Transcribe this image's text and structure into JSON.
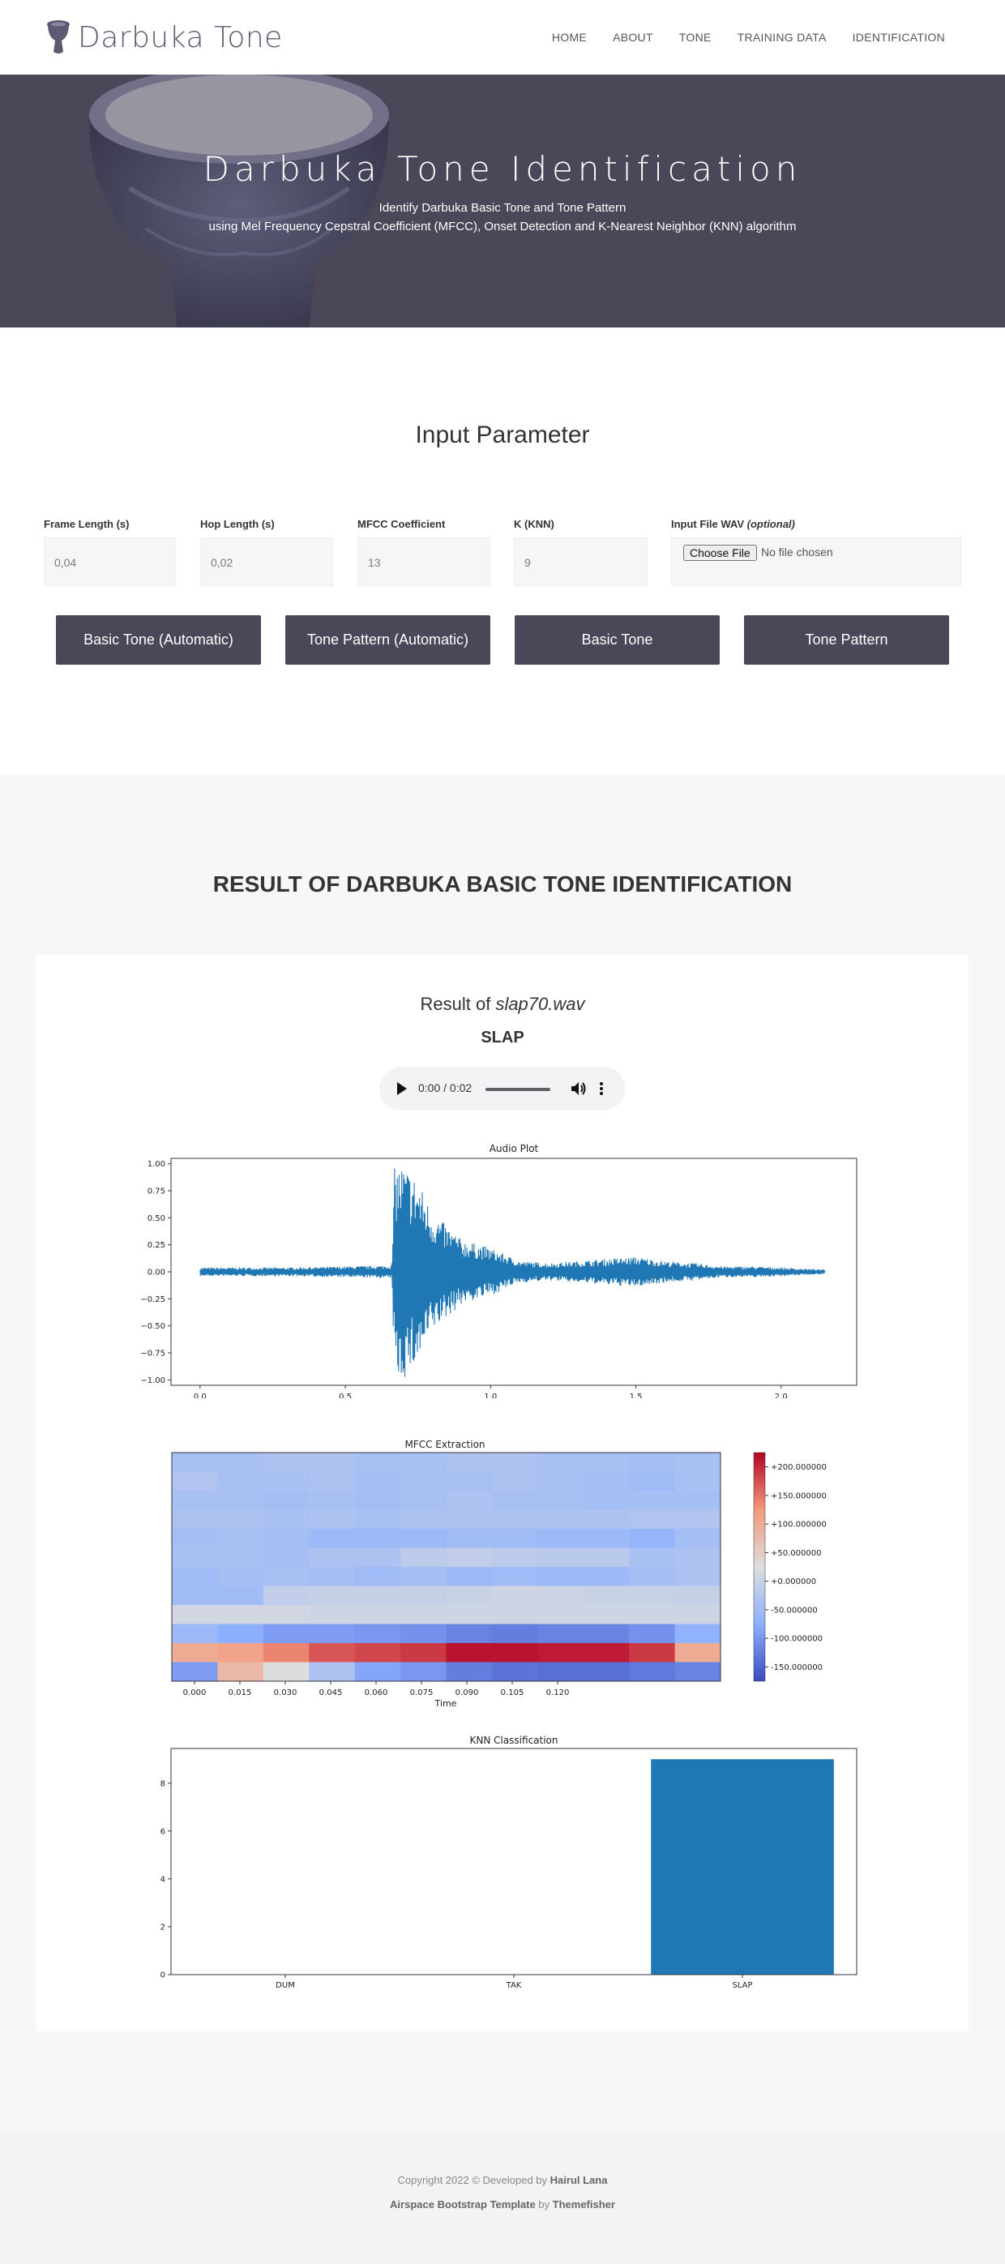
{
  "nav": {
    "brand": "Darbuka Tone",
    "items": [
      "HOME",
      "ABOUT",
      "TONE",
      "TRAINING DATA",
      "IDENTIFICATION"
    ]
  },
  "hero": {
    "title": "Darbuka Tone Identification",
    "subtitle1": "Identify Darbuka Basic Tone and Tone Pattern",
    "subtitle2": "using Mel Frequency Cepstral Coefficient (MFCC), Onset Detection and K-Nearest Neighbor (KNN) algorithm"
  },
  "input": {
    "title": "Input Parameter",
    "fields": [
      {
        "label": "Frame Length (s)",
        "value": "0,04"
      },
      {
        "label": "Hop Length (s)",
        "value": "0,02"
      },
      {
        "label": "MFCC Coefficient",
        "value": "13"
      },
      {
        "label": "K (KNN)",
        "value": "9"
      }
    ],
    "file": {
      "label": "Input File WAV",
      "optional": "(optional)",
      "button": "Choose File",
      "status": "No file chosen"
    },
    "buttons": [
      "Basic Tone (Automatic)",
      "Tone Pattern (Automatic)",
      "Basic Tone",
      "Tone Pattern"
    ]
  },
  "result": {
    "heading": "RESULT OF DARBUKA BASIC TONE IDENTIFICATION",
    "result_of": "Result of",
    "filename": "slap70.wav",
    "class": "SLAP",
    "audio_time": "0:00 / 0:02"
  },
  "chart_data": [
    {
      "type": "line",
      "title": "Audio Plot",
      "xlabel": "",
      "ylabel": "",
      "xlim": [
        -0.1,
        2.26
      ],
      "ylim": [
        -1.05,
        1.05
      ],
      "xticks": [
        0.0,
        0.5,
        1.0,
        1.5,
        2.0
      ],
      "xtick_labels": [
        "0.0",
        "0.5",
        "1.0",
        "1.5",
        "2.0"
      ],
      "yticks": [
        1.0,
        0.75,
        0.5,
        0.25,
        0.0,
        -0.25,
        -0.5,
        -0.75,
        -1.0
      ],
      "ytick_labels": [
        "1.00",
        "0.75",
        "0.50",
        "0.25",
        "0.00",
        "−0.25",
        "−0.50",
        "−0.75",
        "−1.00"
      ],
      "color": "#1f77b4",
      "envelope": {
        "t": [
          0.0,
          0.3,
          0.5,
          0.66,
          0.67,
          0.7,
          0.75,
          0.8,
          0.9,
          1.0,
          1.1,
          1.2,
          1.3,
          1.4,
          1.5,
          1.6,
          1.7,
          1.8,
          1.9,
          2.0,
          2.15
        ],
        "amp": [
          0.04,
          0.04,
          0.05,
          0.06,
          1.0,
          1.0,
          0.85,
          0.55,
          0.3,
          0.22,
          0.1,
          0.08,
          0.1,
          0.12,
          0.14,
          0.1,
          0.08,
          0.05,
          0.05,
          0.04,
          0.02
        ]
      }
    },
    {
      "type": "heatmap",
      "title": "MFCC Extraction",
      "xlabel": "Time",
      "xtick_labels": [
        "0.000",
        "0.015",
        "0.030",
        "0.045",
        "0.060",
        "0.075",
        "0.090",
        "0.105",
        "0.120"
      ],
      "colorbar_ticks": [
        "+200.000000",
        "+150.000000",
        "+100.000000",
        "+50.000000",
        "+0.000000",
        "-50.000000",
        "-100.000000",
        "-150.000000"
      ],
      "vmin": -175,
      "vmax": 225,
      "colormap": "coolwarm",
      "rows_top_to_bottom": [
        [
          -40,
          -40,
          -35,
          -35,
          -40,
          -40,
          -35,
          -35,
          -40,
          -40,
          -45,
          -40
        ],
        [
          -30,
          -40,
          -40,
          -35,
          -45,
          -40,
          -40,
          -35,
          -40,
          -45,
          -50,
          -40
        ],
        [
          -40,
          -40,
          -45,
          -40,
          -45,
          -40,
          -35,
          -40,
          -40,
          -45,
          -45,
          -45
        ],
        [
          -35,
          -35,
          -40,
          -35,
          -40,
          -35,
          -35,
          -35,
          -35,
          -35,
          -30,
          -30
        ],
        [
          -45,
          -40,
          -45,
          -55,
          -55,
          -55,
          -50,
          -50,
          -55,
          -55,
          -65,
          -45
        ],
        [
          -40,
          -40,
          -45,
          -35,
          -35,
          -15,
          -10,
          -15,
          -20,
          -20,
          -40,
          -35
        ],
        [
          -50,
          -45,
          -40,
          -45,
          -50,
          -45,
          -55,
          -50,
          -55,
          -55,
          -45,
          -35
        ],
        [
          -50,
          -50,
          -10,
          -5,
          -5,
          -5,
          0,
          5,
          5,
          0,
          0,
          -5
        ],
        [
          10,
          10,
          10,
          5,
          5,
          5,
          5,
          5,
          5,
          5,
          5,
          5
        ],
        [
          -55,
          -75,
          -95,
          -95,
          -100,
          -105,
          -120,
          -125,
          -120,
          -120,
          -105,
          -70
        ],
        [
          100,
          110,
          140,
          170,
          180,
          190,
          215,
          215,
          210,
          210,
          190,
          100
        ],
        [
          -95,
          80,
          25,
          -35,
          -85,
          -100,
          -125,
          -135,
          -140,
          -140,
          -130,
          -120
        ]
      ]
    },
    {
      "type": "bar",
      "title": "KNN Classification",
      "categories": [
        "DUM",
        "TAK",
        "SLAP"
      ],
      "values": [
        0,
        0,
        9
      ],
      "yticks": [
        0,
        2,
        4,
        6,
        8
      ],
      "ylim": [
        0,
        9.45
      ],
      "color": "#1f77b4"
    }
  ],
  "footer": {
    "line1_prefix": "Copyright 2022 © Developed by",
    "author": "Hairul Lana",
    "line2_template": "Airspace Bootstrap Template",
    "by": "by",
    "maker": "Themefisher"
  }
}
